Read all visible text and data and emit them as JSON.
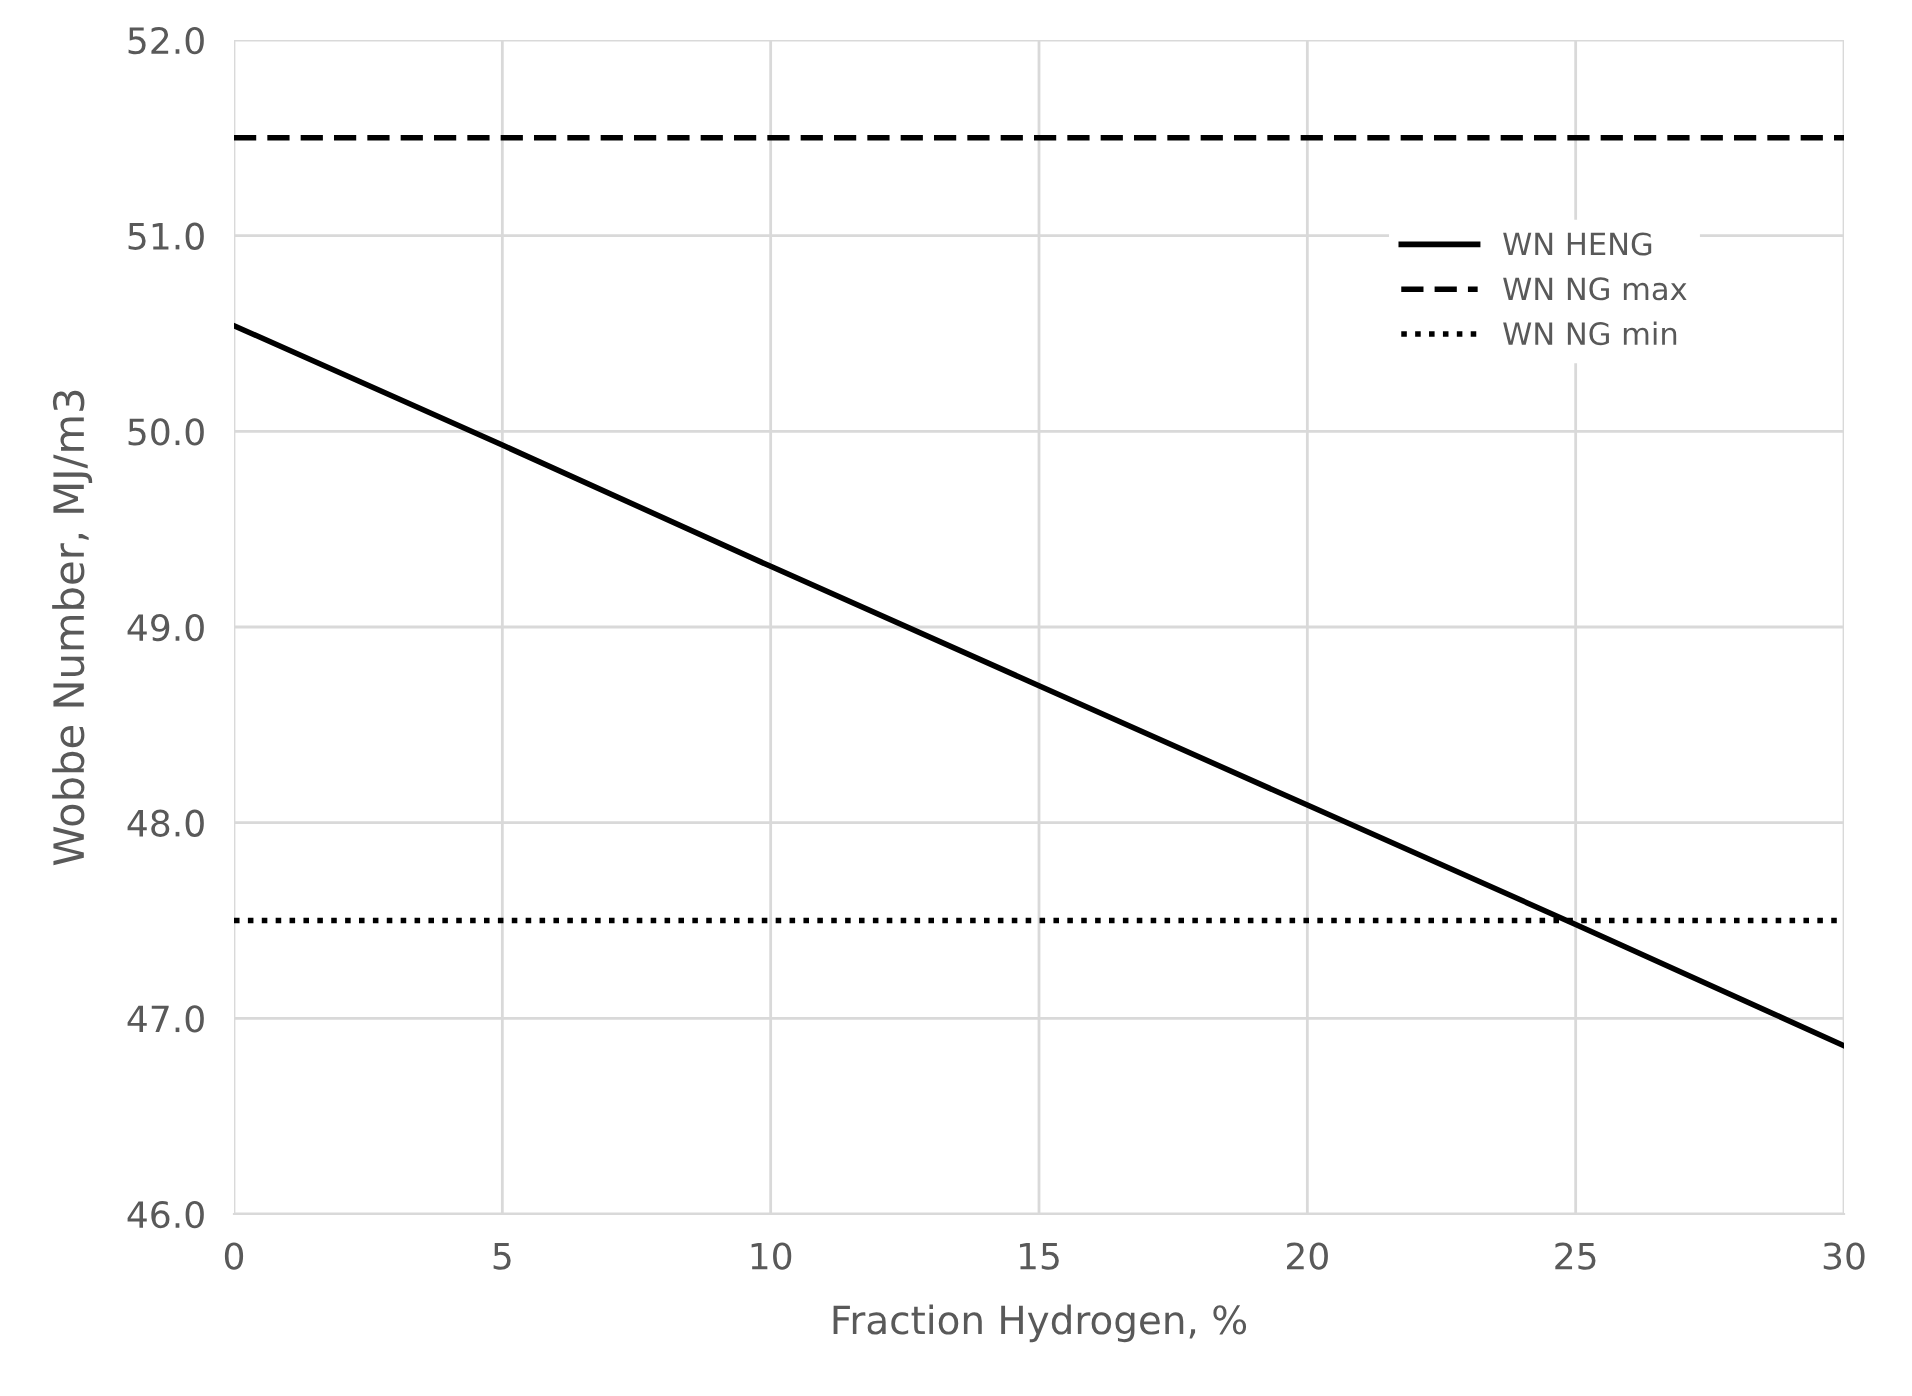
{
  "chart_data": {
    "type": "line",
    "xlabel": "Fraction Hydrogen, %",
    "ylabel": "Wobbe Number, MJ/m3",
    "xlim": [
      0,
      30
    ],
    "xticks": [
      0,
      5,
      10,
      15,
      20,
      25,
      30
    ],
    "ylim": [
      46.0,
      52.0
    ],
    "yticks": [
      {
        "value": 46,
        "label": "46.0"
      },
      {
        "value": 47,
        "label": "47.0"
      },
      {
        "value": 48,
        "label": "48.0"
      },
      {
        "value": 49,
        "label": "49.0"
      },
      {
        "value": 50,
        "label": "50.0"
      },
      {
        "value": 51,
        "label": "51.0"
      },
      {
        "value": 52,
        "label": "52.0"
      }
    ],
    "grid": true,
    "legend": "top right",
    "marker": "none",
    "series": [
      {
        "name": "WN HENG",
        "color": "#000000",
        "line_style": "solid",
        "x": [
          0,
          5,
          10,
          15,
          20,
          25,
          30
        ],
        "values": [
          50.54,
          49.93,
          49.31,
          48.7,
          48.09,
          47.48,
          46.86
        ]
      },
      {
        "name": "WN NG max",
        "color": "#000000",
        "line_style": "dashed",
        "x": [
          0,
          30
        ],
        "values": [
          51.5,
          51.5
        ]
      },
      {
        "name": "WN NG min",
        "color": "#000000",
        "line_style": "dotted",
        "x": [
          0,
          30
        ],
        "values": [
          47.5,
          47.5
        ]
      }
    ]
  }
}
